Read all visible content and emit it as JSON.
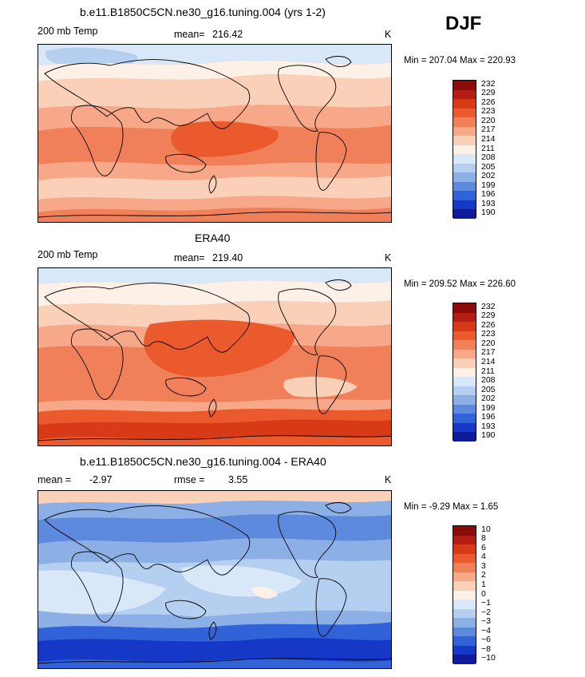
{
  "season": "DJF",
  "panels": [
    {
      "title": "b.e11.B1850C5CN.ne30_g16.tuning.004 (yrs 1-2)",
      "field_label": "200 mb Temp",
      "stat_label": "mean=",
      "stat_value": "216.42",
      "extra_label": "",
      "extra_value": "",
      "units": "K",
      "min_label": "Min =",
      "min_value": "207.04",
      "max_label": "Max =",
      "max_value": "220.93",
      "legend_ticks": [
        "232",
        "229",
        "226",
        "223",
        "220",
        "217",
        "214",
        "211",
        "208",
        "205",
        "202",
        "199",
        "196",
        "193",
        "190"
      ]
    },
    {
      "title": "ERA40",
      "field_label": "200 mb Temp",
      "stat_label": "mean=",
      "stat_value": "219.40",
      "extra_label": "",
      "extra_value": "",
      "units": "K",
      "min_label": "Min =",
      "min_value": "209.52",
      "max_label": "Max =",
      "max_value": "226.60",
      "legend_ticks": [
        "232",
        "229",
        "226",
        "223",
        "220",
        "217",
        "214",
        "211",
        "208",
        "205",
        "202",
        "199",
        "196",
        "193",
        "190"
      ]
    },
    {
      "title": "b.e11.B1850C5CN.ne30_g16.tuning.004 - ERA40",
      "field_label": "mean =",
      "stat_label": "",
      "stat_value": "-2.97",
      "extra_label": "rmse =",
      "extra_value": "3.55",
      "units": "K",
      "min_label": "Min =",
      "min_value": "-9.29",
      "max_label": "Max =",
      "max_value": "1.65",
      "legend_ticks": [
        "10",
        "8",
        "6",
        "4",
        "3",
        "2",
        "1",
        "0",
        "−1",
        "−2",
        "−3",
        "−4",
        "−6",
        "−8",
        "−10"
      ]
    }
  ],
  "legend_colors": [
    "#8b0a0a",
    "#b31d12",
    "#d83a18",
    "#ea5a2c",
    "#f0805a",
    "#f6a888",
    "#fbd0b8",
    "#fdf0e6",
    "#d8e8f8",
    "#b4cfef",
    "#8cb0e6",
    "#5d8adc",
    "#3262d8",
    "#1638c6",
    "#0e1a9a"
  ]
}
